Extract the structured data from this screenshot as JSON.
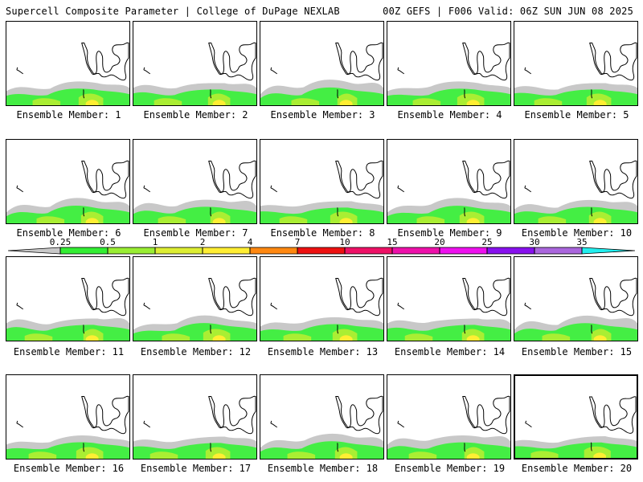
{
  "header": {
    "title": "Supercell Composite Parameter | College of DuPage NEXLAB",
    "run_info": "00Z GEFS | F006 Valid: 06Z SUN JUN 08 2025"
  },
  "members": [
    {
      "label": "Ensemble Member: 1"
    },
    {
      "label": "Ensemble Member: 2"
    },
    {
      "label": "Ensemble Member: 3"
    },
    {
      "label": "Ensemble Member: 4"
    },
    {
      "label": "Ensemble Member: 5"
    },
    {
      "label": "Ensemble Member: 6"
    },
    {
      "label": "Ensemble Member: 7"
    },
    {
      "label": "Ensemble Member: 8"
    },
    {
      "label": "Ensemble Member: 9"
    },
    {
      "label": "Ensemble Member: 10"
    },
    {
      "label": "Ensemble Member: 11"
    },
    {
      "label": "Ensemble Member: 12"
    },
    {
      "label": "Ensemble Member: 13"
    },
    {
      "label": "Ensemble Member: 14"
    },
    {
      "label": "Ensemble Member: 15"
    },
    {
      "label": "Ensemble Member: 16"
    },
    {
      "label": "Ensemble Member: 17"
    },
    {
      "label": "Ensemble Member: 18"
    },
    {
      "label": "Ensemble Member: 19"
    },
    {
      "label": "Ensemble Member: 20"
    }
  ],
  "legend": {
    "ticks": [
      "0.25",
      "0.5",
      "1",
      "2",
      "4",
      "7",
      "10",
      "15",
      "20",
      "25",
      "30",
      "35"
    ],
    "colors": [
      "#c8c8c8",
      "#33ee33",
      "#99ee33",
      "#ddee33",
      "#ffee33",
      "#ff8811",
      "#ee1111",
      "#ee1166",
      "#ee11aa",
      "#ee11ee",
      "#8811ee",
      "#aa66dd",
      "#22eeee"
    ]
  },
  "colors": {
    "shade_light": "#c8c8c8",
    "shade_green": "#44ee44",
    "shade_lime": "#aaee33",
    "shade_yellow": "#ffee33"
  }
}
